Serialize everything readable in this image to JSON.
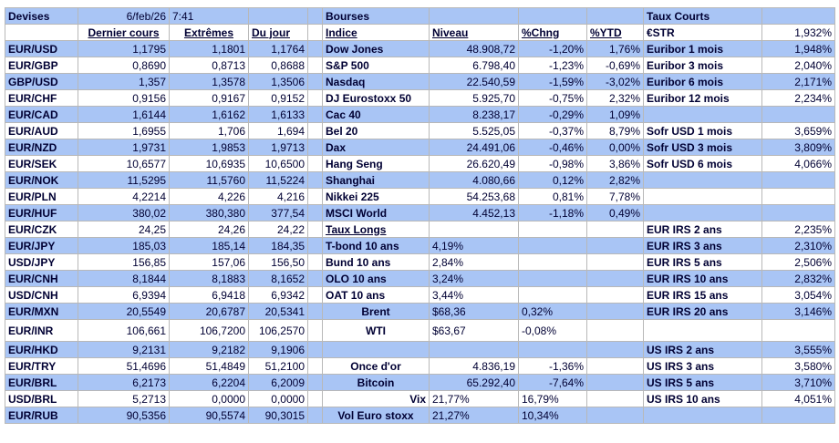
{
  "header": {
    "devises": "Devises",
    "date": "6/feb/26",
    "time": "7:41",
    "bourses": "Bourses",
    "taux_courts": "Taux Courts"
  },
  "columns": {
    "dernier_cours": "Dernier cours",
    "extremes": "Extrêmes",
    "du_jour": "Du jour",
    "indice": "Indice",
    "niveau": "Niveau",
    "chng": "%Chng",
    "ytd": "%YTD",
    "estr": "€STR",
    "estr_value": "1,932%"
  },
  "fx": [
    [
      "EUR/USD",
      "1,1795",
      "1,1801",
      "1,1764"
    ],
    [
      "EUR/GBP",
      "0,8690",
      "0,8713",
      "0,8688"
    ],
    [
      "GBP/USD",
      "1,357",
      "1,3578",
      "1,3506"
    ],
    [
      "EUR/CHF",
      "0,9156",
      "0,9167",
      "0,9152"
    ],
    [
      "EUR/CAD",
      "1,6144",
      "1,6162",
      "1,6133"
    ],
    [
      "EUR/AUD",
      "1,6955",
      "1,706",
      "1,694"
    ],
    [
      "EUR/NZD",
      "1,9731",
      "1,9853",
      "1,9713"
    ],
    [
      "EUR/SEK",
      "10,6577",
      "10,6935",
      "10,6500"
    ],
    [
      "EUR/NOK",
      "11,5295",
      "11,5760",
      "11,5224"
    ],
    [
      "EUR/PLN",
      "4,2214",
      "4,226",
      "4,216"
    ],
    [
      "EUR/HUF",
      "380,02",
      "380,380",
      "377,54"
    ],
    [
      "EUR/CZK",
      "24,25",
      "24,26",
      "24,22"
    ],
    [
      "EUR/JPY",
      "185,03",
      "185,14",
      "184,35"
    ],
    [
      "USD/JPY",
      "156,85",
      "157,06",
      "156,50"
    ],
    [
      "EUR/CNH",
      "8,1844",
      "8,1883",
      "8,1652"
    ],
    [
      "USD/CNH",
      "6,9394",
      "6,9418",
      "6,9342"
    ],
    [
      "EUR/MXN",
      "20,5549",
      "20,6787",
      "20,5341"
    ],
    [
      "EUR/INR",
      "106,661",
      "106,7200",
      "106,2570"
    ],
    [
      "EUR/HKD",
      "9,2131",
      "9,2182",
      "9,1906"
    ],
    [
      "EUR/TRY",
      "51,4696",
      "51,4849",
      "51,2100"
    ],
    [
      "EUR/BRL",
      "6,2173",
      "6,2204",
      "6,2009"
    ],
    [
      "USD/BRL",
      "5,2713",
      "0,0000",
      "0,0000"
    ],
    [
      "EUR/RUB",
      "90,5356",
      "90,5574",
      "90,3015"
    ]
  ],
  "indices": [
    [
      "Dow Jones",
      "48.908,72",
      "-1,20%",
      "1,76%"
    ],
    [
      "S&P 500",
      "6.798,40",
      "-1,23%",
      "-0,69%"
    ],
    [
      "Nasdaq",
      "22.540,59",
      "-1,59%",
      "-3,02%"
    ],
    [
      "DJ Eurostoxx 50",
      "5.925,70",
      "-0,75%",
      "2,32%"
    ],
    [
      "Cac 40",
      "8.238,17",
      "-0,29%",
      "1,09%"
    ],
    [
      "Bel 20",
      "5.525,05",
      "-0,37%",
      "8,79%"
    ],
    [
      "Dax",
      "24.491,06",
      "-0,46%",
      "0,00%"
    ],
    [
      "Hang Seng",
      "26.620,49",
      "-0,98%",
      "3,86%"
    ],
    [
      "Shanghai",
      "4.080,66",
      "0,12%",
      "2,82%"
    ],
    [
      "Nikkei 225",
      "54.253,68",
      "0,81%",
      "7,78%"
    ],
    [
      "MSCI World",
      "4.452,13",
      "-1,18%",
      "0,49%"
    ]
  ],
  "taux_longs": {
    "title": "Taux Longs",
    "rows": [
      [
        "T-bond 10 ans",
        "4,19%"
      ],
      [
        "Bund 10 ans",
        "2,84%"
      ],
      [
        "OLO 10 ans",
        "3,24%"
      ],
      [
        "OAT 10 ans",
        "3,44%"
      ]
    ]
  },
  "commodities": [
    [
      "Brent",
      "$68,36",
      "0,32%"
    ],
    [
      "WTI",
      "$63,67",
      "-0,08%"
    ]
  ],
  "others": [
    [
      "Once d'or",
      "4.836,19",
      "-1,36%"
    ],
    [
      "Bitcoin",
      "65.292,40",
      "-7,64%"
    ],
    [
      "Vix",
      "21,77%",
      "16,79%"
    ],
    [
      "Vol Euro stoxx",
      "21,27%",
      "10,34%"
    ]
  ],
  "euribor": [
    [
      "Euribor 1 mois",
      "1,948%"
    ],
    [
      "Euribor 3 mois",
      "2,040%"
    ],
    [
      "Euribor 6 mois",
      "2,171%"
    ],
    [
      "Euribor 12 mois",
      "2,234%"
    ]
  ],
  "sofr": [
    [
      "Sofr USD 1 mois",
      "3,659%"
    ],
    [
      "Sofr USD 3 mois",
      "3,809%"
    ],
    [
      "Sofr USD 6 mois",
      "4,066%"
    ]
  ],
  "eur_irs": [
    [
      "EUR IRS 2 ans",
      "2,235%"
    ],
    [
      "EUR IRS 3 ans",
      "2,310%"
    ],
    [
      "EUR IRS 5 ans",
      "2,506%"
    ],
    [
      "EUR IRS 10 ans",
      "2,832%"
    ],
    [
      "EUR IRS 15 ans",
      "3,054%"
    ],
    [
      "EUR IRS 20 ans",
      "3,146%"
    ]
  ],
  "us_irs": [
    [
      "US IRS 2 ans",
      "3,555%"
    ],
    [
      "US IRS 3 ans",
      "3,580%"
    ],
    [
      "US IRS 5 ans",
      "3,710%"
    ],
    [
      "US IRS 10 ans",
      "4,051%"
    ]
  ]
}
